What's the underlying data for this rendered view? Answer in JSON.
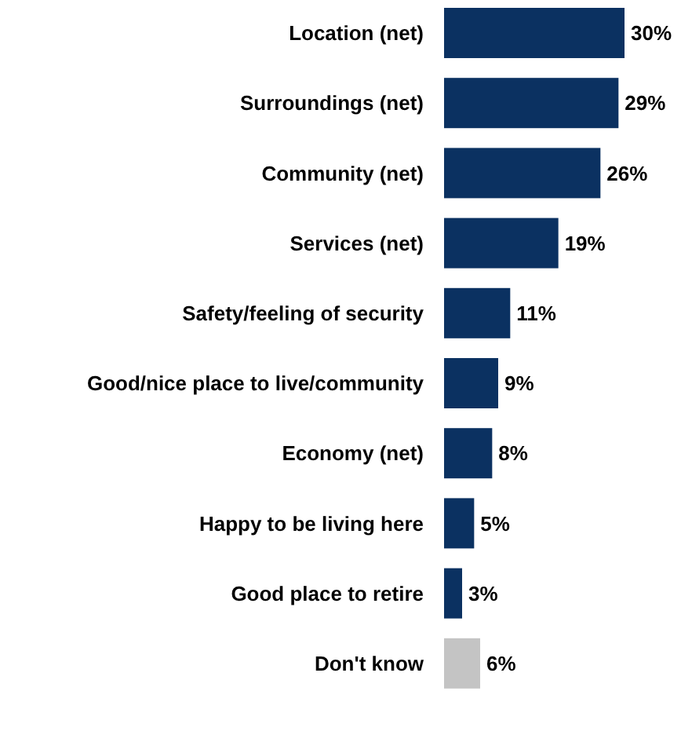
{
  "chart_data": {
    "type": "bar",
    "orientation": "horizontal",
    "categories": [
      "Location (net)",
      "Surroundings (net)",
      "Community (net)",
      "Services (net)",
      "Safety/feeling of security",
      "Good/nice place to live/community",
      "Economy (net)",
      "Happy to be living here",
      "Good place to retire",
      "Don't know"
    ],
    "values": [
      30,
      29,
      26,
      19,
      11,
      9,
      8,
      5,
      3,
      6
    ],
    "colors": [
      "#0b3161",
      "#0b3161",
      "#0b3161",
      "#0b3161",
      "#0b3161",
      "#0b3161",
      "#0b3161",
      "#0b3161",
      "#0b3161",
      "#c4c4c4"
    ],
    "value_labels": [
      "30%",
      "29%",
      "26%",
      "19%",
      "11%",
      "9%",
      "8%",
      "5%",
      "3%",
      "6%"
    ]
  }
}
